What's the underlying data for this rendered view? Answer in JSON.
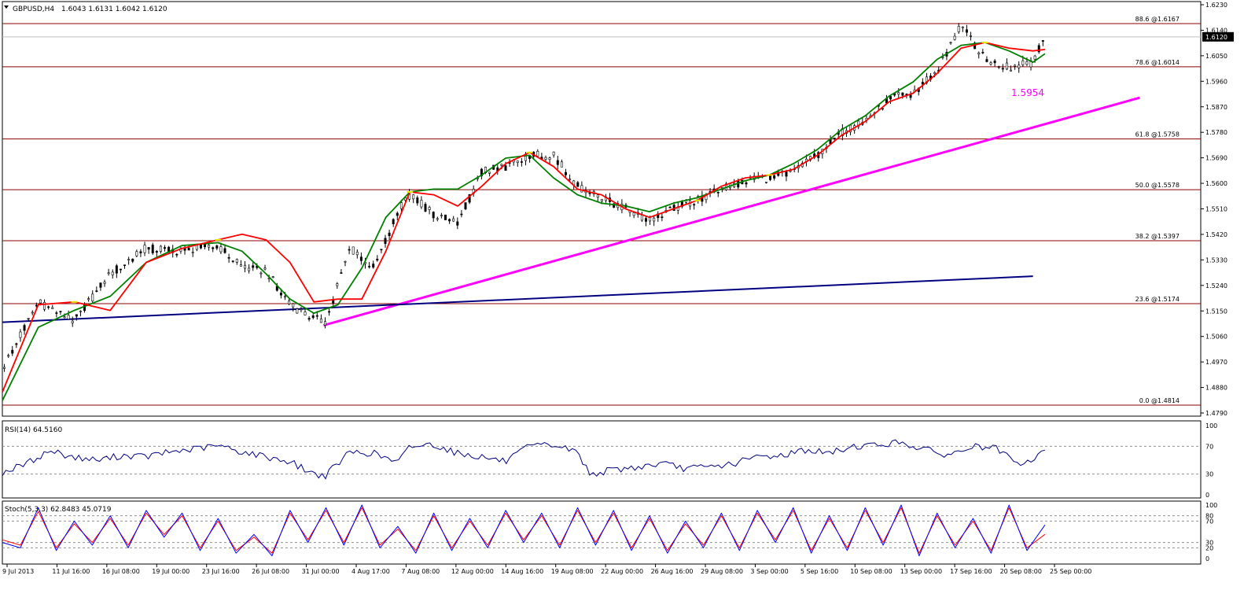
{
  "header": {
    "symbol_label": "GBPUSD,H4",
    "ohlc_label": "1.6043 1.6131 1.6042 1.6120"
  },
  "price_axis": {
    "labels": [
      "1.6230",
      "1.6140",
      "1.6050",
      "1.5960",
      "1.5870",
      "1.5780",
      "1.5690",
      "1.5600",
      "1.5510",
      "1.5420",
      "1.5330",
      "1.5240",
      "1.5150",
      "1.5060",
      "1.4970",
      "1.4880",
      "1.4790"
    ],
    "current_price": "1.6120",
    "current_price_value": 1.612
  },
  "colors": {
    "fib": "#8b0000",
    "trendline_magenta": "#ff00ff",
    "trendline_navy": "#000080",
    "ma_red": "#ff0000",
    "ma_green": "#008000",
    "ma_yellow": "#e6e600",
    "rsi_line": "#000080",
    "stoch_main": "#0000ff",
    "stoch_signal": "#ff0000",
    "candle": "#000000"
  },
  "chart_data": [
    {
      "type": "line",
      "name": "price-panel",
      "yrange": [
        1.4775,
        1.6245
      ],
      "current_price": 1.612,
      "fib_levels": [
        {
          "label": "88.6 @1.6167",
          "value": 1.6167
        },
        {
          "label": "78.6 @1.6014",
          "value": 1.6014
        },
        {
          "label": "61.8 @1.5758",
          "value": 1.5758
        },
        {
          "label": "50.0 @1.5578",
          "value": 1.5578
        },
        {
          "label": "38.2 @1.5397",
          "value": 1.5397
        },
        {
          "label": "23.6 @1.5174",
          "value": 1.5174
        },
        {
          "label": "0.0 @1.4814",
          "value": 1.4814
        }
      ],
      "annotations": [
        {
          "text": "1.5954",
          "value": 1.5954
        }
      ],
      "trendlines": [
        {
          "color": "magenta",
          "points": [
            [
              0.268,
              1.5097
            ],
            [
              0.949,
              1.5904
            ]
          ]
        },
        {
          "color": "navy",
          "points": [
            [
              0.0,
              1.5108
            ],
            [
              0.86,
              1.5271
            ]
          ]
        }
      ],
      "series": [
        {
          "role": "price",
          "x": [
            0.0,
            0.03,
            0.06,
            0.09,
            0.12,
            0.15,
            0.18,
            0.2,
            0.22,
            0.24,
            0.26,
            0.27,
            0.29,
            0.31,
            0.33,
            0.34,
            0.36,
            0.38,
            0.4,
            0.42,
            0.44,
            0.46,
            0.48,
            0.5,
            0.52,
            0.54,
            0.56,
            0.58,
            0.6,
            0.62,
            0.64,
            0.66,
            0.68,
            0.7,
            0.72,
            0.74,
            0.76,
            0.78,
            0.8,
            0.82,
            0.84,
            0.86,
            0.87
          ],
          "y": [
            1.494,
            1.518,
            1.511,
            1.528,
            1.537,
            1.536,
            1.538,
            1.53,
            1.529,
            1.517,
            1.512,
            1.511,
            1.537,
            1.53,
            1.55,
            1.556,
            1.549,
            1.546,
            1.564,
            1.566,
            1.57,
            1.57,
            1.559,
            1.555,
            1.551,
            1.547,
            1.551,
            1.554,
            1.558,
            1.561,
            1.562,
            1.564,
            1.57,
            1.578,
            1.582,
            1.59,
            1.592,
            1.6,
            1.616,
            1.604,
            1.601,
            1.603,
            1.612
          ]
        },
        {
          "role": "ma-fast",
          "x": [
            0.0,
            0.03,
            0.06,
            0.09,
            0.12,
            0.15,
            0.18,
            0.2,
            0.22,
            0.24,
            0.26,
            0.28,
            0.3,
            0.32,
            0.34,
            0.36,
            0.38,
            0.4,
            0.42,
            0.44,
            0.46,
            0.48,
            0.5,
            0.52,
            0.54,
            0.56,
            0.58,
            0.6,
            0.62,
            0.64,
            0.66,
            0.68,
            0.7,
            0.72,
            0.74,
            0.76,
            0.78,
            0.8,
            0.82,
            0.84,
            0.86,
            0.87
          ],
          "y": [
            1.486,
            1.517,
            1.518,
            1.515,
            1.532,
            1.537,
            1.54,
            1.542,
            1.54,
            1.532,
            1.518,
            1.519,
            1.519,
            1.536,
            1.557,
            1.556,
            1.552,
            1.559,
            1.567,
            1.571,
            1.566,
            1.558,
            1.556,
            1.551,
            1.548,
            1.551,
            1.554,
            1.559,
            1.562,
            1.563,
            1.565,
            1.57,
            1.577,
            1.582,
            1.589,
            1.592,
            1.599,
            1.608,
            1.61,
            1.608,
            1.607,
            1.6075
          ]
        },
        {
          "role": "ma-slow",
          "x": [
            0.0,
            0.03,
            0.06,
            0.09,
            0.12,
            0.15,
            0.18,
            0.2,
            0.22,
            0.24,
            0.26,
            0.28,
            0.3,
            0.32,
            0.34,
            0.36,
            0.38,
            0.4,
            0.42,
            0.44,
            0.46,
            0.48,
            0.5,
            0.52,
            0.54,
            0.56,
            0.58,
            0.6,
            0.62,
            0.64,
            0.66,
            0.68,
            0.7,
            0.72,
            0.74,
            0.76,
            0.78,
            0.8,
            0.82,
            0.84,
            0.86,
            0.87
          ],
          "y": [
            1.483,
            1.509,
            1.515,
            1.52,
            1.532,
            1.538,
            1.539,
            1.536,
            1.528,
            1.519,
            1.514,
            1.517,
            1.53,
            1.548,
            1.557,
            1.558,
            1.558,
            1.563,
            1.569,
            1.57,
            1.562,
            1.556,
            1.553,
            1.552,
            1.55,
            1.553,
            1.555,
            1.558,
            1.561,
            1.563,
            1.567,
            1.572,
            1.579,
            1.584,
            1.591,
            1.596,
            1.604,
            1.609,
            1.61,
            1.607,
            1.603,
            1.606
          ]
        }
      ]
    },
    {
      "type": "line",
      "name": "rsi-panel",
      "title": "RSI(14) 64.5160",
      "ylim": [
        0,
        100
      ],
      "levels": [
        30,
        70
      ],
      "tick_labels": [
        "100",
        "70",
        "30",
        "0"
      ],
      "x": [
        0.0,
        0.02,
        0.04,
        0.06,
        0.08,
        0.1,
        0.12,
        0.14,
        0.16,
        0.18,
        0.2,
        0.22,
        0.24,
        0.26,
        0.27,
        0.29,
        0.31,
        0.33,
        0.34,
        0.36,
        0.38,
        0.4,
        0.42,
        0.44,
        0.46,
        0.48,
        0.49,
        0.51,
        0.53,
        0.55,
        0.57,
        0.59,
        0.61,
        0.63,
        0.65,
        0.67,
        0.69,
        0.71,
        0.73,
        0.75,
        0.77,
        0.79,
        0.81,
        0.83,
        0.85,
        0.87
      ],
      "values": [
        32,
        45,
        64,
        54,
        50,
        57,
        55,
        62,
        66,
        71,
        62,
        55,
        48,
        30,
        28,
        62,
        60,
        46,
        70,
        73,
        60,
        55,
        48,
        70,
        72,
        62,
        30,
        36,
        40,
        45,
        38,
        40,
        45,
        55,
        57,
        65,
        60,
        70,
        72,
        76,
        65,
        57,
        70,
        66,
        40,
        64.5
      ]
    },
    {
      "type": "line",
      "name": "stoch-panel",
      "title": "Stoch(5,3,3) 62.8483 45.0719",
      "ylim": [
        0,
        100
      ],
      "levels": [
        20,
        30,
        70,
        80
      ],
      "tick_labels": [
        "100",
        "80",
        "70",
        "30",
        "20",
        "0"
      ],
      "x": [
        0.0,
        0.015,
        0.03,
        0.045,
        0.06,
        0.075,
        0.09,
        0.105,
        0.12,
        0.135,
        0.15,
        0.165,
        0.18,
        0.195,
        0.21,
        0.225,
        0.24,
        0.255,
        0.27,
        0.285,
        0.3,
        0.315,
        0.33,
        0.345,
        0.36,
        0.375,
        0.39,
        0.405,
        0.42,
        0.435,
        0.45,
        0.465,
        0.48,
        0.495,
        0.51,
        0.525,
        0.54,
        0.555,
        0.57,
        0.585,
        0.6,
        0.615,
        0.63,
        0.645,
        0.66,
        0.675,
        0.69,
        0.705,
        0.72,
        0.735,
        0.75,
        0.765,
        0.78,
        0.795,
        0.81,
        0.825,
        0.84,
        0.855,
        0.87
      ],
      "series": [
        {
          "name": "main",
          "values": [
            30,
            20,
            95,
            15,
            70,
            25,
            80,
            20,
            90,
            40,
            85,
            15,
            75,
            10,
            45,
            5,
            90,
            30,
            95,
            25,
            100,
            20,
            60,
            10,
            85,
            15,
            75,
            20,
            90,
            30,
            85,
            20,
            95,
            25,
            90,
            15,
            80,
            10,
            70,
            20,
            85,
            15,
            90,
            30,
            95,
            10,
            80,
            15,
            95,
            25,
            100,
            5,
            85,
            20,
            75,
            10,
            100,
            15,
            62.8
          ]
        },
        {
          "name": "signal",
          "values": [
            35,
            25,
            88,
            20,
            65,
            30,
            75,
            25,
            85,
            45,
            80,
            20,
            70,
            15,
            40,
            10,
            85,
            35,
            90,
            30,
            95,
            25,
            55,
            15,
            80,
            20,
            70,
            25,
            85,
            35,
            80,
            25,
            90,
            30,
            85,
            20,
            75,
            15,
            65,
            25,
            80,
            20,
            85,
            35,
            90,
            15,
            75,
            20,
            90,
            30,
            95,
            10,
            80,
            25,
            70,
            15,
            95,
            20,
            45.1
          ]
        }
      ]
    }
  ],
  "date_axis": {
    "labels": [
      "9 Jul 2013",
      "11 Jul 16:00",
      "16 Jul 08:00",
      "19 Jul 00:00",
      "23 Jul 16:00",
      "26 Jul 08:00",
      "31 Jul 00:00",
      "4 Aug 17:00",
      "7 Aug 08:00",
      "12 Aug 00:00",
      "14 Aug 16:00",
      "19 Aug 08:00",
      "22 Aug 00:00",
      "26 Aug 16:00",
      "29 Aug 08:00",
      "3 Sep 00:00",
      "5 Sep 16:00",
      "10 Sep 08:00",
      "13 Sep 00:00",
      "17 Sep 16:00",
      "20 Sep 08:00",
      "25 Sep 00:00"
    ]
  }
}
